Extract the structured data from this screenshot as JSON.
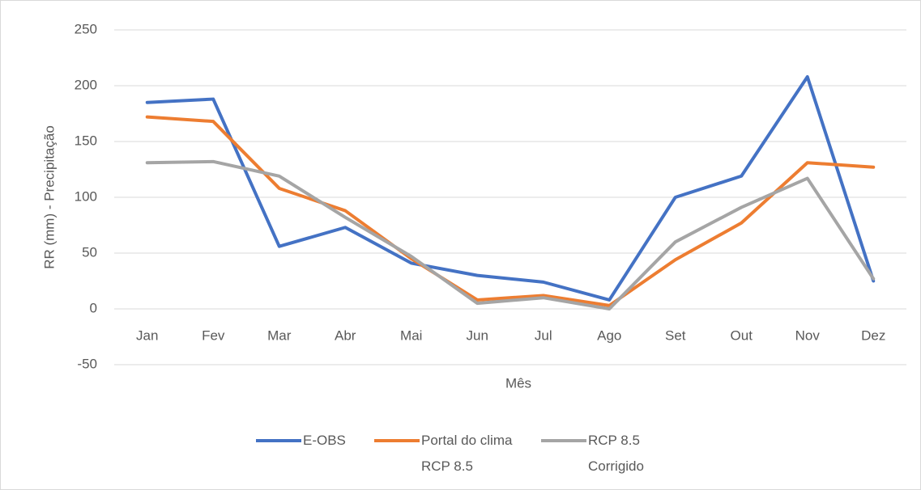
{
  "chart_data": {
    "type": "line",
    "x_label": "Mês",
    "y_label": "RR (mm) - Precipitação",
    "categories": [
      "Jan",
      "Fev",
      "Mar",
      "Abr",
      "Mai",
      "Jun",
      "Jul",
      "Ago",
      "Set",
      "Out",
      "Nov",
      "Dez"
    ],
    "series": [
      {
        "name": "E-OBS",
        "color": "#4472c4",
        "values": [
          185,
          188,
          56,
          73,
          41,
          30,
          24,
          8,
          100,
          119,
          208,
          25
        ]
      },
      {
        "name": "Portal do clima RCP 8.5",
        "color": "#ed7d31",
        "values": [
          172,
          168,
          108,
          88,
          45,
          8,
          12,
          3,
          44,
          77,
          131,
          127
        ]
      },
      {
        "name": "RCP 8.5 Corrigido",
        "color": "#a5a5a5",
        "values": [
          131,
          132,
          119,
          82,
          47,
          5,
          10,
          0,
          60,
          91,
          117,
          27
        ]
      }
    ],
    "ylim": [
      -50,
      250
    ],
    "yticks": [
      -50,
      0,
      50,
      100,
      150,
      200,
      250
    ],
    "grid": true,
    "legend": "bottom"
  }
}
